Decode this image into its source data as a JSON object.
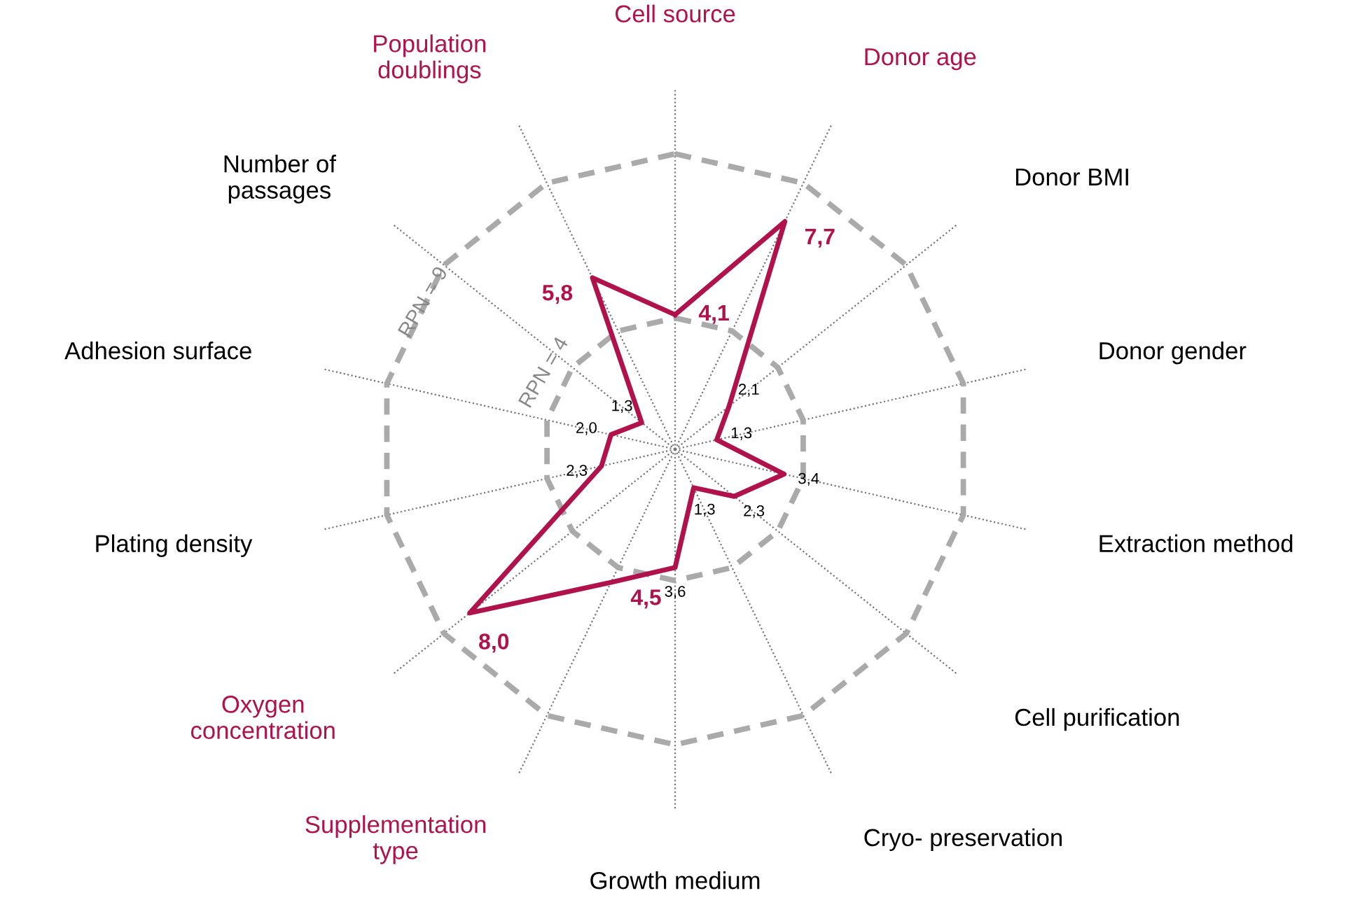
{
  "chart_data": {
    "type": "radar",
    "categories": [
      "Cell source",
      "Donor age",
      "Donor BMI",
      "Donor gender",
      "Extraction method",
      "Cell purification",
      "Cryo- preservation",
      "Growth medium",
      "Supplementation\ntype",
      "Oxygen\nconcentration",
      "Plating density",
      "Adhesion surface",
      "Number of\npassages",
      "Population\ndoublings"
    ],
    "series": [
      {
        "color": "#b0124c",
        "values": [
          4.1,
          7.7,
          2.1,
          1.3,
          3.4,
          2.3,
          1.3,
          3.6,
          4.5,
          8.0,
          2.3,
          2.0,
          1.3,
          5.8
        ],
        "value_labels": [
          "4,1",
          "7,7",
          "2,1",
          "1,3",
          "3,4",
          "2,3",
          "1,3",
          "3,6",
          "4,5",
          "8,0",
          "2,3",
          "2,0",
          "1,3",
          "5,8"
        ],
        "colors": [
          "#b0124c",
          "#b0124c",
          "#000000",
          "#000000",
          "#000000",
          "#000000",
          "#000000",
          "#000000",
          "#b0124c",
          "#b0124c",
          "#000000",
          "#000000",
          "#000000",
          "#b0124c"
        ]
      }
    ],
    "ylim": [
      0,
      11
    ],
    "yticks": [
      {
        "value": 4,
        "label": "RPN = 4"
      },
      {
        "value": 9,
        "label": "RPN = 9"
      }
    ],
    "grid": true,
    "line_style": "solid"
  }
}
